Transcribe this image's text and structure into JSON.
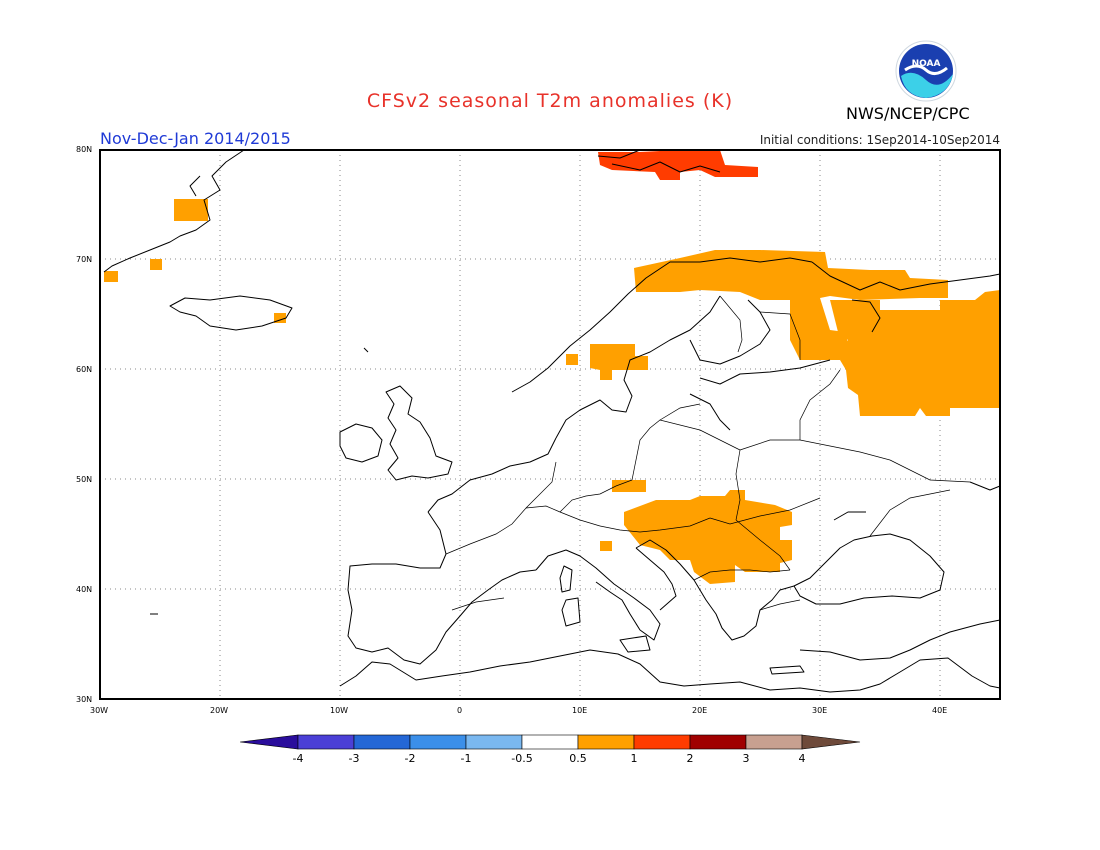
{
  "title": "CFSv2 seasonal T2m anomalies (K)",
  "agency": "NWS/NCEP/CPC",
  "logo_text": "NOAA",
  "period": "Nov-Dec-Jan 2014/2015",
  "initial_conditions": "Initial conditions: 1Sep2014-10Sep2014",
  "lat_labels": [
    "80N",
    "70N",
    "60N",
    "50N",
    "40N",
    "30N"
  ],
  "lon_labels": [
    "30W",
    "20W",
    "10W",
    "0",
    "10E",
    "20E",
    "30E",
    "40E"
  ],
  "colorbar": {
    "labels": [
      "-4",
      "-3",
      "-2",
      "-1",
      "-0.5",
      "0.5",
      "1",
      "2",
      "3",
      "4"
    ],
    "colors": [
      "#2a0d9c",
      "#4b3fd6",
      "#2467d6",
      "#3b8fe9",
      "#7ab8f0",
      "#ffffff",
      "#ffa000",
      "#ff3c00",
      "#a00000",
      "#c8a090",
      "#6e4a3a"
    ]
  },
  "anomaly_colors": {
    "plus_0_5_to_1": "#ffa000",
    "plus_1_to_2": "#ff3c00"
  },
  "map_extent": {
    "lon": [
      -30,
      45
    ],
    "lat": [
      30,
      80
    ]
  }
}
